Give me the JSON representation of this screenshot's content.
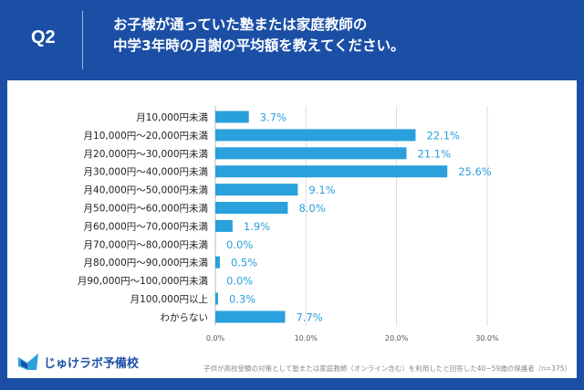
{
  "header": {
    "q": "Q2",
    "title_line1": "お子様が通っていた塾または家庭教師の",
    "title_line2": "中学3年時の月謝の平均額を教えてください。"
  },
  "footer": {
    "logo": "じゅけラボ予備校",
    "note": "子供が高校受験の対策として塾または家庭教師（オンライン含む）を利用したと回答した40~59歳の保護者（n=375）"
  },
  "colors": {
    "bar": "#2aa0dc",
    "background": "#1b4fa6"
  },
  "chart_data": {
    "type": "bar",
    "orientation": "horizontal",
    "categories": [
      "月10,000円未満",
      "月10,000円～20,000円未満",
      "月20,000円～30,000円未満",
      "月30,000円～40,000円未満",
      "月40,000円～50,000円未満",
      "月50,000円～60,000円未満",
      "月60,000円～70,000円未満",
      "月70,000円～80,000円未満",
      "月80,000円～90,000円未満",
      "月90,000円～100,000円未満",
      "月100,000円以上",
      "わからない"
    ],
    "values": [
      3.7,
      22.1,
      21.1,
      25.6,
      9.1,
      8.0,
      1.9,
      0.0,
      0.5,
      0.0,
      0.3,
      7.7
    ],
    "data_labels": [
      "3.7%",
      "22.1%",
      "21.1%",
      "25.6%",
      "9.1%",
      "8.0%",
      "1.9%",
      "0.0%",
      "0.5%",
      "0.0%",
      "0.3%",
      "7.7%"
    ],
    "xlim": [
      0,
      30
    ],
    "ticks": [
      0,
      10,
      20,
      30
    ],
    "tick_labels": [
      "0.0%",
      "10.0%",
      "20.0%",
      "30.0%"
    ],
    "grid": true
  }
}
